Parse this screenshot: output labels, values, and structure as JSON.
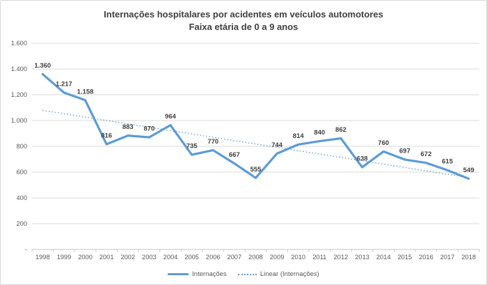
{
  "chart_data": {
    "type": "line",
    "title": "Internações hospitalares por acidentes em veículos automotores",
    "subtitle": "Faixa etária de 0 a 9 anos",
    "categories": [
      "1998",
      "1999",
      "2000",
      "2001",
      "2002",
      "2003",
      "2004",
      "2005",
      "2006",
      "2007",
      "2008",
      "2009",
      "2010",
      "2011",
      "2012",
      "2013",
      "2014",
      "2015",
      "2016",
      "2017",
      "2018"
    ],
    "series": [
      {
        "name": "Internações",
        "type": "line",
        "style": "solid",
        "color": "#5b9bd5",
        "values": [
          1360,
          1217,
          1158,
          816,
          883,
          870,
          964,
          735,
          770,
          667,
          555,
          744,
          814,
          840,
          862,
          638,
          760,
          697,
          672,
          615,
          549
        ],
        "data_labels": [
          "1.360",
          "1.217",
          "1.158",
          "816",
          "883",
          "870",
          "964",
          "735",
          "770",
          "667",
          "555",
          "744",
          "814",
          "840",
          "862",
          "638",
          "760",
          "697",
          "672",
          "615",
          "549"
        ]
      },
      {
        "name": "Linear (Internações)",
        "type": "linear_trendline",
        "of": "Internações",
        "style": "dotted",
        "color": "#5b9bd5"
      }
    ],
    "y_axis": {
      "min": 0,
      "max": 1600,
      "step": 200,
      "tick_labels": [
        "1.600",
        "1.400",
        "1.200",
        "1.000",
        "800",
        "600",
        "400",
        "200",
        "-"
      ]
    },
    "x_axis": {
      "tick_labels": [
        "1998",
        "1999",
        "2000",
        "2001",
        "2002",
        "2003",
        "2004",
        "2005",
        "2006",
        "2007",
        "2008",
        "2009",
        "2010",
        "2011",
        "2012",
        "2013",
        "2014",
        "2015",
        "2016",
        "2017",
        "2018"
      ]
    },
    "grid": true,
    "legend": {
      "position": "bottom",
      "entries": [
        "Internações",
        "Linear (Internações)"
      ]
    },
    "colors": {
      "series": "#5b9bd5",
      "trend": "#5b9bd5",
      "gridline": "#d9d9d9",
      "axis_line": "#c6c6c6",
      "tick_label": "#595959",
      "data_label": "#404040",
      "title": "#404040",
      "legend_text": "#595959",
      "chart_border": "#d9d9d9",
      "background": "#ffffff"
    }
  }
}
